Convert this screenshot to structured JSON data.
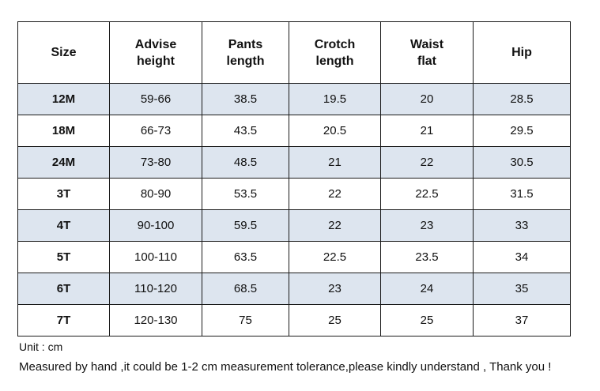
{
  "table": {
    "headers": [
      [
        "Size"
      ],
      [
        "Advise",
        "height"
      ],
      [
        "Pants",
        "length"
      ],
      [
        "Crotch",
        "length"
      ],
      [
        "Waist",
        "flat"
      ],
      [
        "Hip"
      ]
    ],
    "rows": [
      [
        "12M",
        "59-66",
        "38.5",
        "19.5",
        "20",
        "28.5"
      ],
      [
        "18M",
        "66-73",
        "43.5",
        "20.5",
        "21",
        "29.5"
      ],
      [
        "24M",
        "73-80",
        "48.5",
        "21",
        "22",
        "30.5"
      ],
      [
        "3T",
        "80-90",
        "53.5",
        "22",
        "22.5",
        "31.5"
      ],
      [
        "4T",
        "90-100",
        "59.5",
        "22",
        "23",
        "33"
      ],
      [
        "5T",
        "100-110",
        "63.5",
        "22.5",
        "23.5",
        "34"
      ],
      [
        "6T",
        "110-120",
        "68.5",
        "23",
        "24",
        "35"
      ],
      [
        "7T",
        "120-130",
        "75",
        "25",
        "25",
        "37"
      ]
    ],
    "shaded_row_color": "#dde5ef"
  },
  "notes": {
    "unit": "Unit : cm",
    "measurement": "Measured by hand ,it could be 1-2 cm measurement tolerance,please kindly understand , Thank you !"
  }
}
